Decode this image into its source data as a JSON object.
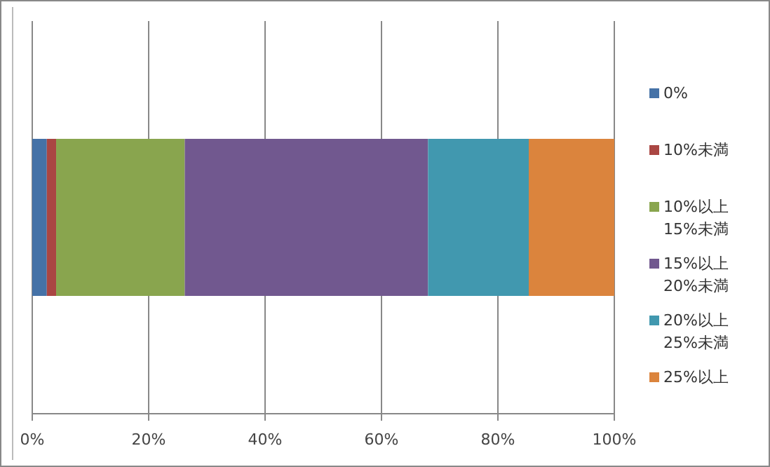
{
  "chart_data": {
    "type": "bar",
    "orientation": "horizontal",
    "stacked": true,
    "categories": [
      null
    ],
    "series": [
      {
        "name": "0%",
        "color": "#4572a7",
        "values": [
          2.5
        ]
      },
      {
        "name": "10%未満",
        "color": "#aa4643",
        "values": [
          1.6
        ]
      },
      {
        "name": "10%以上 15%未満",
        "color": "#89a54e",
        "values": [
          22.1
        ]
      },
      {
        "name": "15%以上 20%未満",
        "color": "#71588f",
        "values": [
          41.8
        ]
      },
      {
        "name": "20%以上 25%未満",
        "color": "#4198af",
        "values": [
          17.3
        ]
      },
      {
        "name": "25%以上",
        "color": "#db843d",
        "values": [
          14.7
        ]
      }
    ],
    "xlim": [
      0,
      100
    ],
    "xticks": [
      {
        "value": 0,
        "label": "0%"
      },
      {
        "value": 20,
        "label": "20%"
      },
      {
        "value": 40,
        "label": "40%"
      },
      {
        "value": 60,
        "label": "60%"
      },
      {
        "value": 80,
        "label": "80%"
      },
      {
        "value": 100,
        "label": "100%"
      }
    ],
    "grid": "x",
    "legend": "right"
  }
}
